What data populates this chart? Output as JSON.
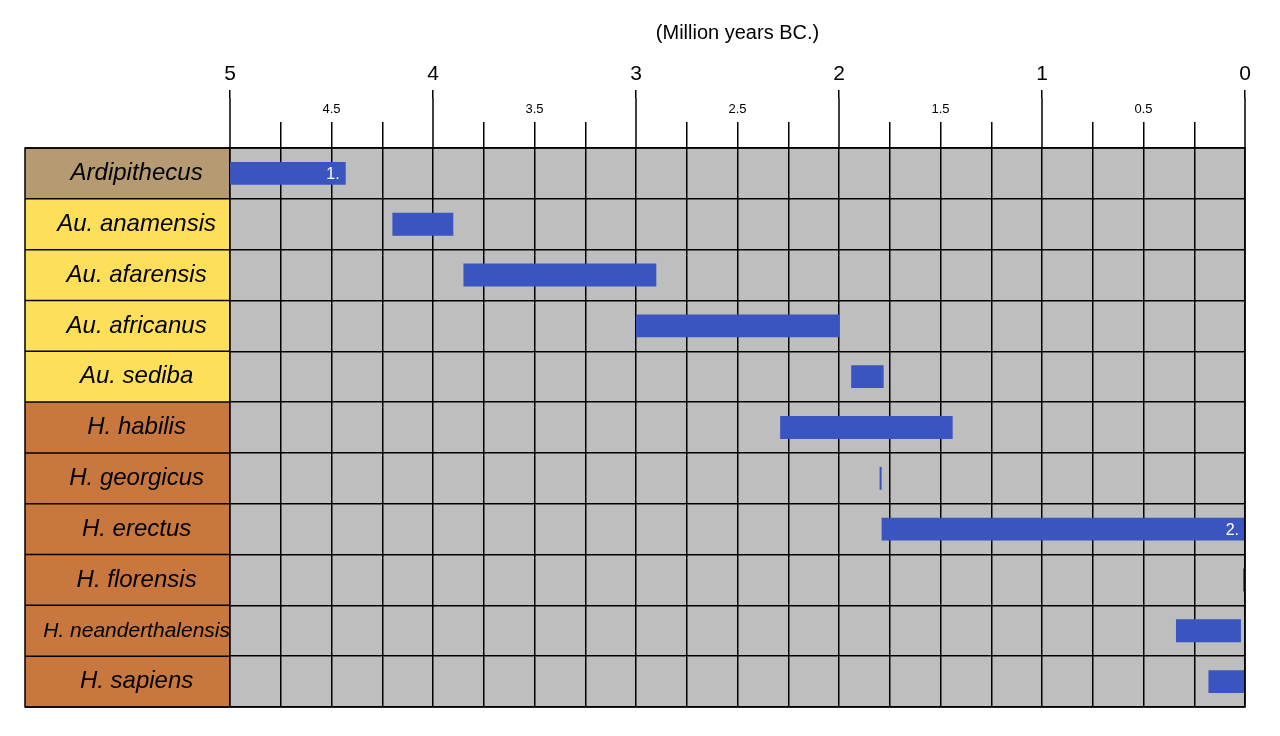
{
  "chart_data": {
    "type": "bar",
    "orientation": "horizontal",
    "title": "(Million years BC.)",
    "categories": [
      "Ardipithecus",
      "Au. anamensis",
      "Au. afarensis",
      "Au. africanus",
      "Au. sediba",
      "H. habilis",
      "H. georgicus",
      "H. erectus",
      "H. florensis",
      "H. neanderthalensis",
      "H. sapiens"
    ],
    "base": [
      4.43,
      3.9,
      2.9,
      2.0,
      1.78,
      1.44,
      1.79,
      0.0,
      0.0,
      0.02,
      0.0
    ],
    "values": [
      0.57,
      0.3,
      0.95,
      1.0,
      0.16,
      0.85,
      0.01,
      1.79,
      0.01,
      0.32,
      0.18
    ],
    "value_labels": [
      "1.",
      null,
      null,
      null,
      null,
      null,
      null,
      "2.",
      null,
      null,
      null
    ],
    "color": "#3a55bf",
    "xlim": [
      5,
      0
    ],
    "xticks": [
      5,
      4,
      3,
      2,
      1,
      0
    ],
    "x2lim": [
      5,
      0
    ],
    "x2ticks": [
      {
        "value": 4.75,
        "label": null
      },
      4.5,
      {
        "value": 4.25,
        "label": null
      },
      {
        "value": 3.75,
        "label": null
      },
      3.5,
      {
        "value": 3.25,
        "label": null
      },
      {
        "value": 2.75,
        "label": null
      },
      2.5,
      {
        "value": 2.25,
        "label": null
      },
      {
        "value": 1.75,
        "label": null
      },
      1.5,
      {
        "value": 1.25,
        "label": null
      },
      {
        "value": 0.75,
        "label": null
      },
      0.5,
      {
        "value": 0.25,
        "label": null
      }
    ],
    "grid": true
  }
}
